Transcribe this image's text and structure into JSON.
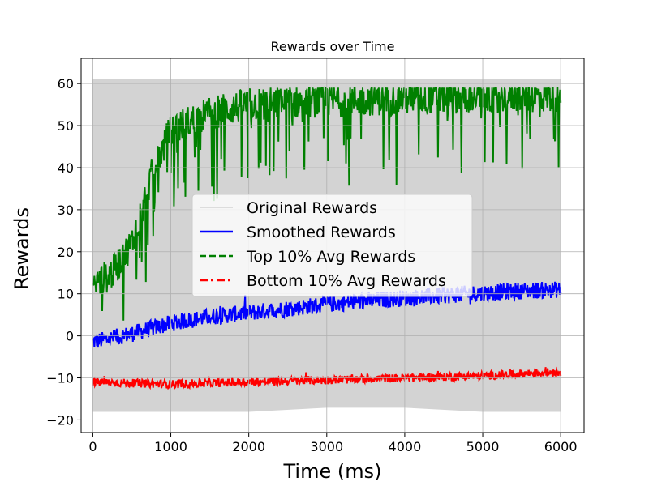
{
  "chart_data": {
    "type": "line",
    "title": "Rewards over Time",
    "xlabel": "Time (ms)",
    "ylabel": "Rewards",
    "xlim": [
      -150,
      6300
    ],
    "ylim": [
      -23,
      66
    ],
    "xticks": [
      0,
      1000,
      2000,
      3000,
      4000,
      5000,
      6000
    ],
    "xtick_labels": [
      "0",
      "1000",
      "2000",
      "3000",
      "4000",
      "5000",
      "6000"
    ],
    "yticks": [
      -20,
      -10,
      0,
      10,
      20,
      30,
      40,
      50,
      60
    ],
    "ytick_labels": [
      "−20",
      "−10",
      "0",
      "10",
      "20",
      "30",
      "40",
      "50",
      "60"
    ],
    "grid": true,
    "legend_position": "center",
    "series": [
      {
        "name": "Original Rewards",
        "color": "#d3d3d3",
        "style": "solid-band",
        "x": [
          0,
          500,
          1000,
          2000,
          3000,
          4000,
          5000,
          6000
        ],
        "upper": [
          61,
          61,
          61,
          61,
          61,
          61,
          61,
          61
        ],
        "lower": [
          -18,
          -18,
          -18,
          -18,
          -17,
          -17,
          -18,
          -18
        ]
      },
      {
        "name": "Smoothed Rewards",
        "color": "#0000ff",
        "style": "solid",
        "x": [
          0,
          500,
          1000,
          1500,
          2000,
          2500,
          3000,
          3500,
          4000,
          4500,
          5000,
          5500,
          6000
        ],
        "values": [
          -1.5,
          0.5,
          3,
          4.5,
          5.5,
          6.5,
          7.5,
          8.3,
          9,
          9.6,
          10.2,
          10.7,
          11
        ],
        "spread": 2.0
      },
      {
        "name": "Top 10% Avg Rewards",
        "color": "#008000",
        "style": "dashed",
        "x": [
          0,
          250,
          500,
          750,
          1000,
          1500,
          2000,
          3000,
          4000,
          5000,
          6000
        ],
        "values": [
          12,
          15,
          22,
          38,
          49,
          53,
          55,
          56,
          56.5,
          57,
          57
        ],
        "spread": 4.0
      },
      {
        "name": "Bottom 10% Avg Rewards",
        "color": "#ff0000",
        "style": "dashdot",
        "x": [
          0,
          1000,
          2000,
          3000,
          4000,
          5000,
          6000
        ],
        "values": [
          -11,
          -11.5,
          -11,
          -10.5,
          -10,
          -9.5,
          -8.5
        ],
        "spread": 1.0
      }
    ]
  }
}
